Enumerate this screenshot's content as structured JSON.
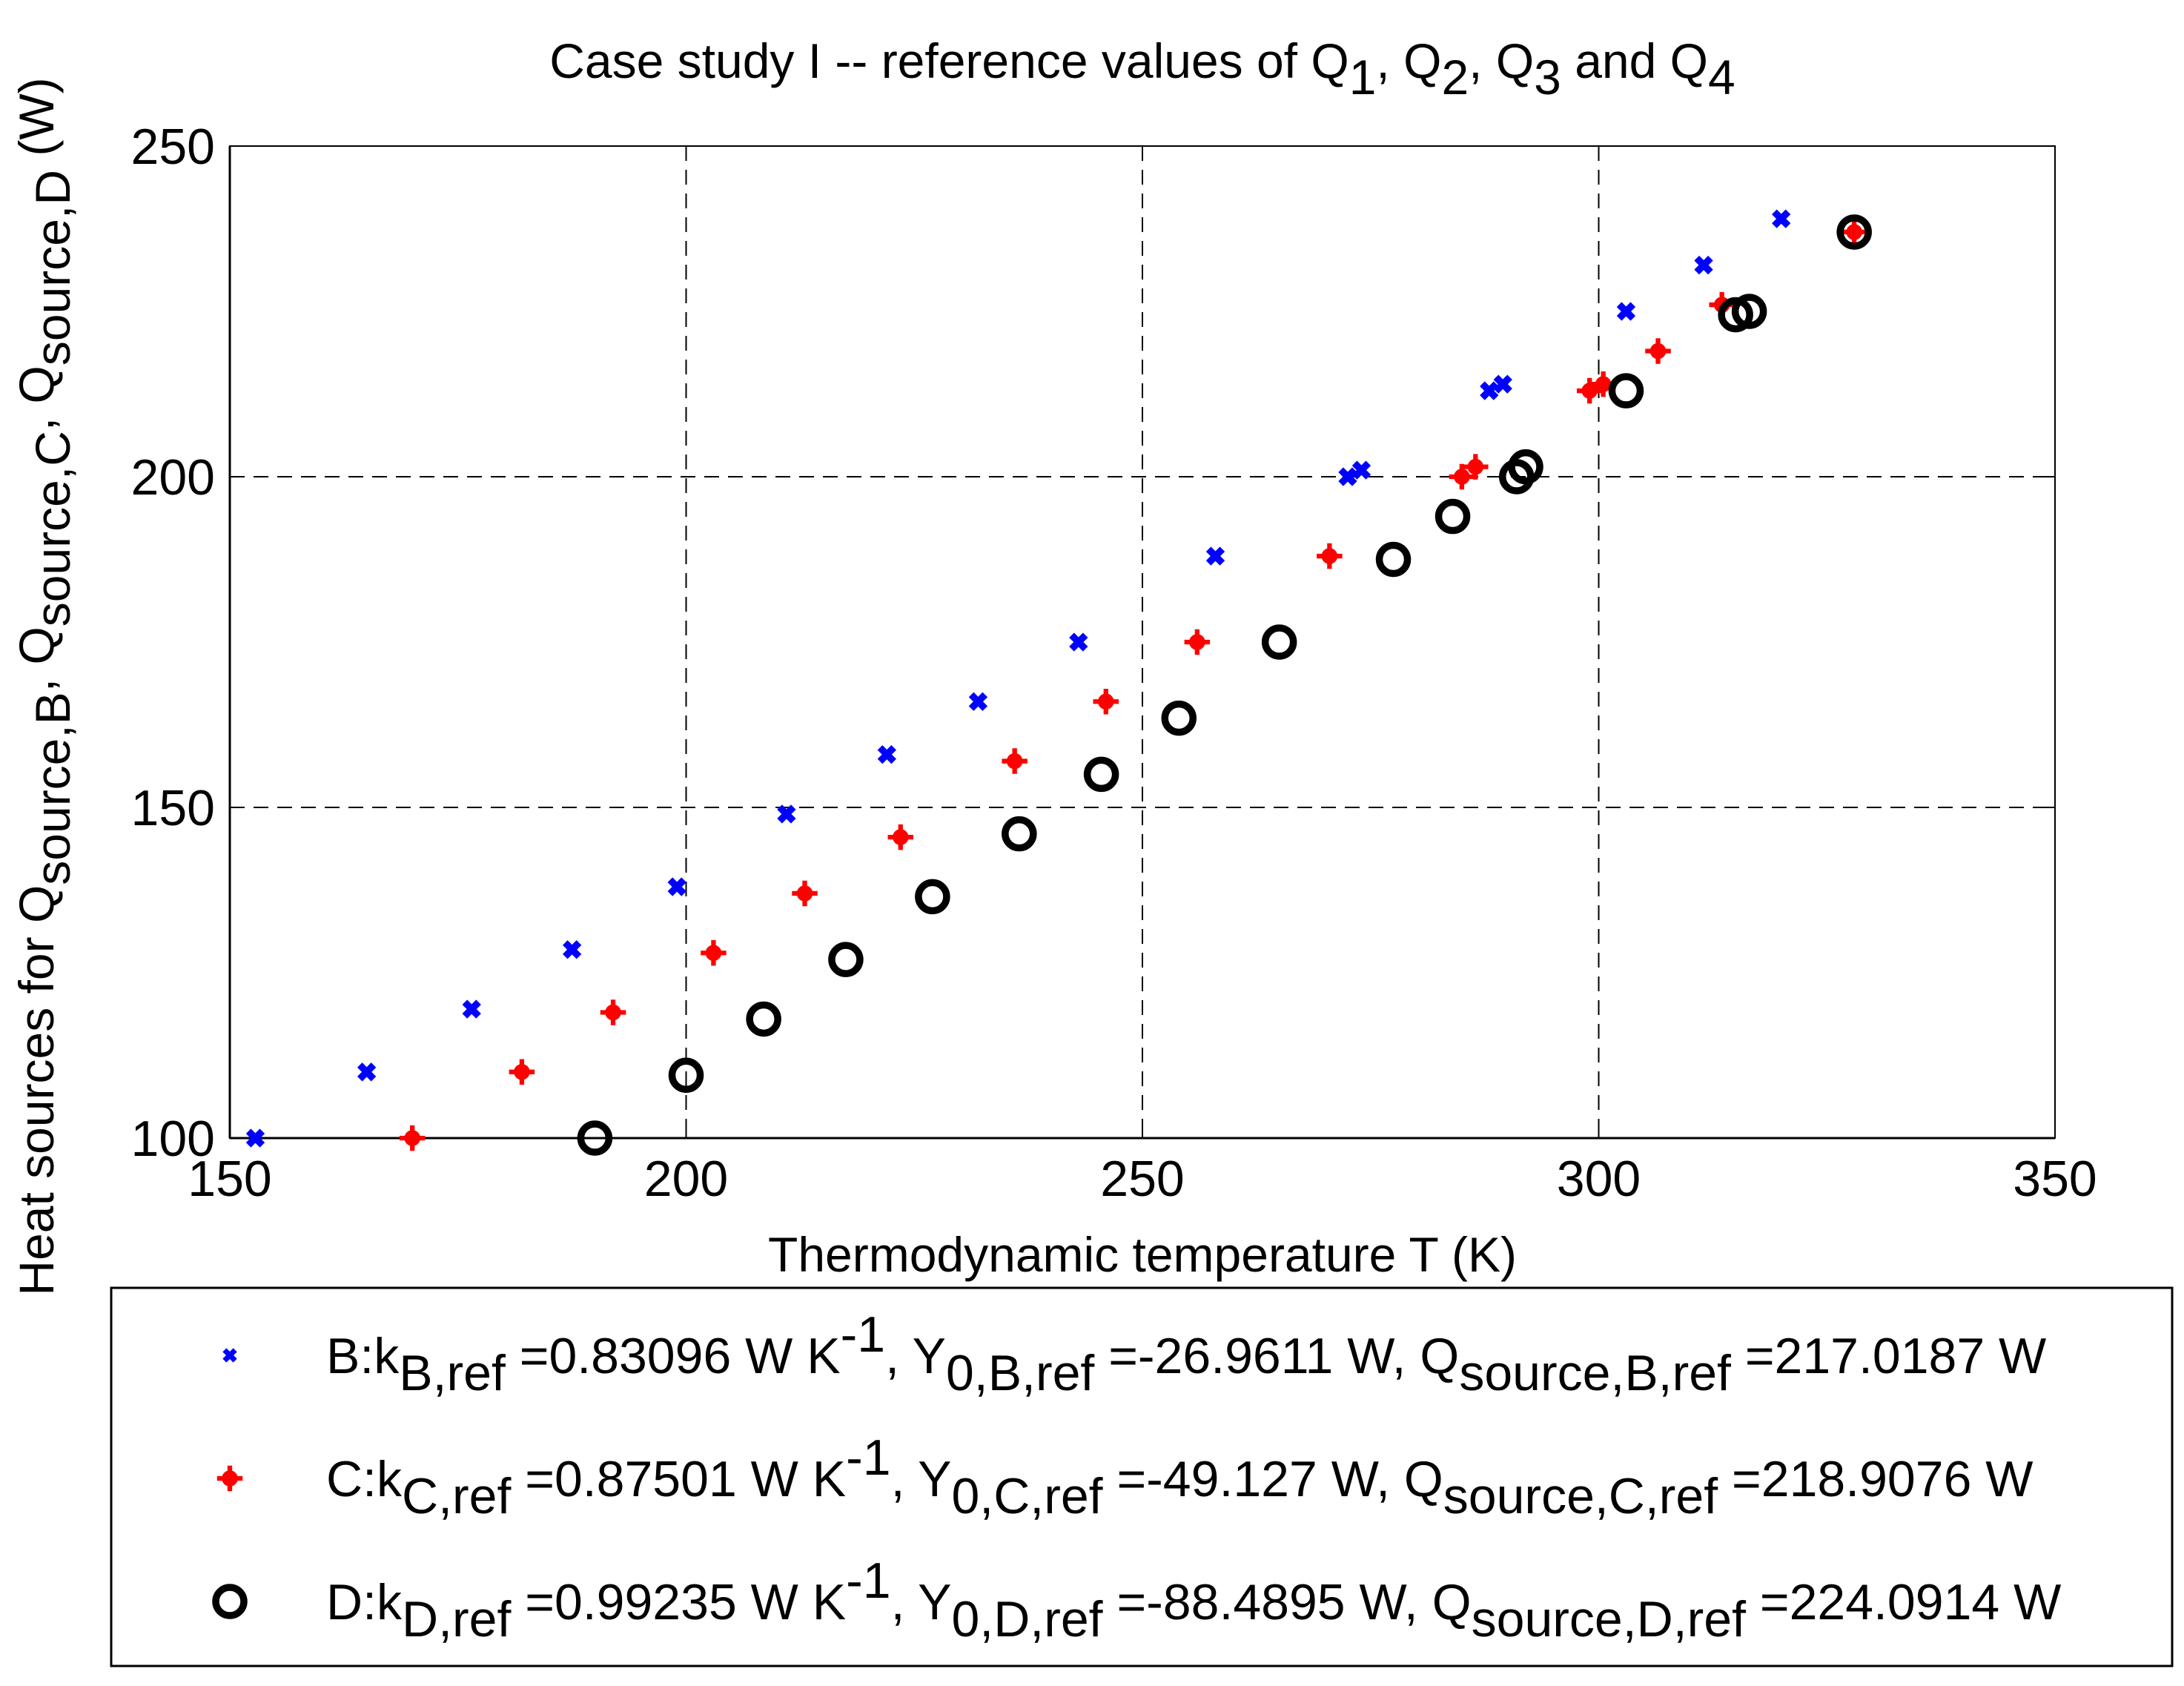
{
  "chart_data": {
    "type": "scatter",
    "title": {
      "text": "Case study I -- reference values of Q",
      "parts": [
        {
          "t": "Case study I -- reference values of Q"
        },
        {
          "t": "1",
          "sub": true
        },
        {
          "t": ", Q"
        },
        {
          "t": "2",
          "sub": true
        },
        {
          "t": ", Q"
        },
        {
          "t": "3",
          "sub": true
        },
        {
          "t": " and Q"
        },
        {
          "t": "4",
          "sub": true
        }
      ]
    },
    "xlabel": "Thermodynamic temperature T (K)",
    "ylabel": {
      "parts": [
        {
          "t": "Heat sources for Q"
        },
        {
          "t": "source,B",
          "sub": true
        },
        {
          "t": ",  Q"
        },
        {
          "t": "source,C",
          "sub": true
        },
        {
          "t": ",  Q"
        },
        {
          "t": "source,D",
          "sub": true
        },
        {
          "t": " (W)"
        }
      ]
    },
    "xlim": [
      150,
      350
    ],
    "ylim": [
      100,
      250
    ],
    "xticks": [
      150,
      200,
      250,
      300,
      350
    ],
    "yticks": [
      100,
      150,
      200,
      250
    ],
    "grid": true,
    "legend_position": "below",
    "series": [
      {
        "name": "B",
        "marker": "x",
        "color": "#0000ff",
        "legend_parts": [
          {
            "t": "B:k"
          },
          {
            "t": "B,ref",
            "sub": true
          },
          {
            "t": " =0.83096 W K"
          },
          {
            "t": "-1",
            "sup": true
          },
          {
            "t": ", Y"
          },
          {
            "t": "0,B,ref",
            "sub": true
          },
          {
            "t": " =-26.9611 W,  Q"
          },
          {
            "t": "source,B,ref",
            "sub": true
          },
          {
            "t": " =217.0187 W"
          }
        ],
        "points": [
          [
            152.8,
            100
          ],
          [
            165,
            110
          ],
          [
            176.5,
            119.5
          ],
          [
            187.5,
            128.5
          ],
          [
            199,
            138
          ],
          [
            211,
            149
          ],
          [
            222,
            158
          ],
          [
            232,
            166
          ],
          [
            243,
            175
          ],
          [
            258,
            188
          ],
          [
            272.5,
            200
          ],
          [
            274,
            201
          ],
          [
            288,
            213
          ],
          [
            289.5,
            214
          ],
          [
            303,
            225
          ],
          [
            311.5,
            232
          ],
          [
            320,
            239
          ]
        ]
      },
      {
        "name": "C",
        "marker": "plus-filled",
        "color": "#ff0000",
        "legend_parts": [
          {
            "t": "C:k"
          },
          {
            "t": "C,ref",
            "sub": true
          },
          {
            "t": " =0.87501 W K"
          },
          {
            "t": "-1",
            "sup": true
          },
          {
            "t": ", Y"
          },
          {
            "t": "0,C,ref",
            "sub": true
          },
          {
            "t": " =-49.127 W,  Q"
          },
          {
            "t": "source,C,ref",
            "sub": true
          },
          {
            "t": " =218.9076 W"
          }
        ],
        "points": [
          [
            170,
            100
          ],
          [
            182,
            110
          ],
          [
            192,
            119
          ],
          [
            203,
            128
          ],
          [
            213,
            137
          ],
          [
            223.5,
            145.5
          ],
          [
            236,
            157
          ],
          [
            246,
            166
          ],
          [
            256,
            175
          ],
          [
            270.5,
            188
          ],
          [
            285,
            200
          ],
          [
            286.5,
            201.5
          ],
          [
            299,
            213
          ],
          [
            300.5,
            214
          ],
          [
            306.5,
            219
          ],
          [
            313.5,
            226
          ],
          [
            328,
            237
          ]
        ]
      },
      {
        "name": "D",
        "marker": "circle-open",
        "color": "#000000",
        "legend_parts": [
          {
            "t": "D:k"
          },
          {
            "t": "D,ref",
            "sub": true
          },
          {
            "t": " =0.99235 W K"
          },
          {
            "t": "-1",
            "sup": true
          },
          {
            "t": ", Y"
          },
          {
            "t": "0,D,ref",
            "sub": true
          },
          {
            "t": " =-88.4895 W,  Q"
          },
          {
            "t": "source,D,ref",
            "sub": true
          },
          {
            "t": " =224.0914 W"
          }
        ],
        "points": [
          [
            190,
            100
          ],
          [
            200,
            109.5
          ],
          [
            208.5,
            118
          ],
          [
            217.5,
            127
          ],
          [
            227,
            136.5
          ],
          [
            236.5,
            146
          ],
          [
            245.5,
            155
          ],
          [
            254,
            163.5
          ],
          [
            265,
            175
          ],
          [
            277.5,
            187.5
          ],
          [
            284,
            194
          ],
          [
            291,
            200
          ],
          [
            292,
            201.5
          ],
          [
            303,
            213
          ],
          [
            315,
            224.5
          ],
          [
            316.5,
            225
          ],
          [
            328,
            237
          ]
        ]
      }
    ]
  }
}
